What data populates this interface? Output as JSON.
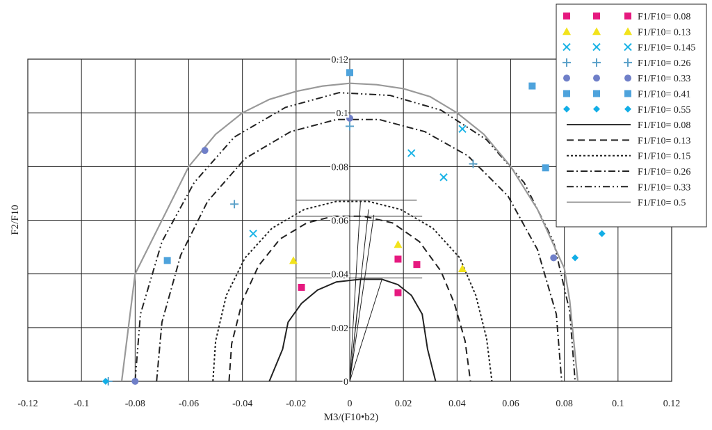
{
  "chart_data": {
    "type": "scatter",
    "xlabel": "M3/(F10•b2)",
    "ylabel": "F2/F10",
    "xlim": [
      -0.12,
      0.12
    ],
    "ylim": [
      0,
      0.12
    ],
    "x_ticks": [
      "-0.12",
      "-0.1",
      "-0.08",
      "-0.06",
      "-0.04",
      "-0.02",
      "0",
      "0.02",
      "0.04",
      "0.06",
      "0.08",
      "0.1",
      "0.12"
    ],
    "y_ticks": [
      "0",
      "0.02",
      "0.04",
      "0.06",
      "0.08",
      "0.1",
      "0.12"
    ],
    "grid": true,
    "legend_position": "top-right",
    "marker_series": [
      {
        "name": "F1/F10= 0.08",
        "marker": "square",
        "color": "#e6197f",
        "points": [
          [
            -0.018,
            0.035
          ],
          [
            0.018,
            0.0455
          ],
          [
            0.025,
            0.0435
          ],
          [
            0.018,
            0.033
          ]
        ]
      },
      {
        "name": "F1/F10= 0.13",
        "marker": "triangle",
        "color": "#f2e31c",
        "points": [
          [
            -0.021,
            0.045
          ],
          [
            0.018,
            0.051
          ],
          [
            0.042,
            0.042
          ]
        ]
      },
      {
        "name": "F1/F10= 0.145",
        "marker": "x",
        "color": "#1ab3e6",
        "points": [
          [
            -0.036,
            0.055
          ],
          [
            0.023,
            0.085
          ],
          [
            0.035,
            0.076
          ],
          [
            0.042,
            0.094
          ]
        ]
      },
      {
        "name": "F1/F10= 0.26",
        "marker": "plus",
        "color": "#5aa0c8",
        "points": [
          [
            -0.043,
            0.066
          ],
          [
            0.0,
            0.095
          ],
          [
            0.046,
            0.081
          ],
          [
            -0.09,
            0.0
          ]
        ]
      },
      {
        "name": "F1/F10= 0.33",
        "marker": "circle",
        "color": "#6f7fc8",
        "points": [
          [
            -0.054,
            0.086
          ],
          [
            0.0,
            0.098
          ],
          [
            0.076,
            0.046
          ],
          [
            -0.08,
            0.0
          ]
        ]
      },
      {
        "name": "F1/F10= 0.41",
        "marker": "square",
        "color": "#4ea3dc",
        "points": [
          [
            -0.068,
            0.045
          ],
          [
            0.0,
            0.115
          ],
          [
            0.068,
            0.11
          ],
          [
            0.073,
            0.0795
          ]
        ]
      },
      {
        "name": "F1/F10= 0.55",
        "marker": "diamond",
        "color": "#12aee6",
        "points": [
          [
            0.094,
            0.055
          ],
          [
            0.084,
            0.046
          ],
          [
            -0.091,
            0.0
          ]
        ]
      }
    ],
    "line_series": [
      {
        "name": "F1/F10= 0.08",
        "style": "solid",
        "color": "#222222",
        "points": [
          [
            -0.03,
            0.0
          ],
          [
            -0.025,
            0.012
          ],
          [
            -0.023,
            0.022
          ],
          [
            -0.018,
            0.029
          ],
          [
            -0.012,
            0.034
          ],
          [
            -0.005,
            0.037
          ],
          [
            0.004,
            0.038
          ],
          [
            0.012,
            0.038
          ],
          [
            0.018,
            0.036
          ],
          [
            0.023,
            0.032
          ],
          [
            0.027,
            0.025
          ],
          [
            0.029,
            0.012
          ],
          [
            0.032,
            0.0
          ]
        ]
      },
      {
        "name": "F1/F10= 0.13",
        "style": "dashed",
        "color": "#222222",
        "points": [
          [
            -0.045,
            0.0
          ],
          [
            -0.044,
            0.014
          ],
          [
            -0.04,
            0.03
          ],
          [
            -0.034,
            0.043
          ],
          [
            -0.026,
            0.053
          ],
          [
            -0.016,
            0.059
          ],
          [
            -0.006,
            0.0615
          ],
          [
            0.005,
            0.0615
          ],
          [
            0.016,
            0.059
          ],
          [
            0.026,
            0.052
          ],
          [
            0.034,
            0.041
          ],
          [
            0.039,
            0.029
          ],
          [
            0.043,
            0.015
          ],
          [
            0.045,
            0.0
          ]
        ]
      },
      {
        "name": "F1/F10= 0.15",
        "style": "dotted",
        "color": "#222222",
        "points": [
          [
            -0.051,
            0.0
          ],
          [
            -0.05,
            0.015
          ],
          [
            -0.046,
            0.032
          ],
          [
            -0.039,
            0.046
          ],
          [
            -0.029,
            0.057
          ],
          [
            -0.017,
            0.064
          ],
          [
            -0.005,
            0.067
          ],
          [
            0.007,
            0.067
          ],
          [
            0.019,
            0.064
          ],
          [
            0.031,
            0.057
          ],
          [
            0.041,
            0.046
          ],
          [
            0.047,
            0.032
          ],
          [
            0.051,
            0.016
          ],
          [
            0.053,
            0.0
          ]
        ]
      },
      {
        "name": "F1/F10= 0.26",
        "style": "dashdot",
        "color": "#222222",
        "points": [
          [
            -0.072,
            0.0
          ],
          [
            -0.07,
            0.022
          ],
          [
            -0.063,
            0.047
          ],
          [
            -0.053,
            0.067
          ],
          [
            -0.039,
            0.083
          ],
          [
            -0.022,
            0.093
          ],
          [
            -0.005,
            0.0975
          ],
          [
            0.011,
            0.0975
          ],
          [
            0.028,
            0.093
          ],
          [
            0.044,
            0.084
          ],
          [
            0.059,
            0.069
          ],
          [
            0.07,
            0.049
          ],
          [
            0.077,
            0.025
          ],
          [
            0.079,
            0.0
          ]
        ]
      },
      {
        "name": "F1/F10= 0.33",
        "style": "dashdotdot",
        "color": "#222222",
        "points": [
          [
            -0.08,
            0.0
          ],
          [
            -0.078,
            0.025
          ],
          [
            -0.07,
            0.052
          ],
          [
            -0.058,
            0.074
          ],
          [
            -0.043,
            0.091
          ],
          [
            -0.024,
            0.102
          ],
          [
            -0.004,
            0.1075
          ],
          [
            0.015,
            0.1065
          ],
          [
            0.034,
            0.101
          ],
          [
            0.051,
            0.09
          ],
          [
            0.065,
            0.074
          ],
          [
            0.076,
            0.052
          ],
          [
            0.082,
            0.026
          ],
          [
            0.084,
            0.0
          ]
        ]
      },
      {
        "name": "F1/F10= 0.5",
        "style": "solid",
        "color": "#999999",
        "points": [
          [
            -0.085,
            0.0
          ],
          [
            -0.08,
            0.04
          ],
          [
            -0.06,
            0.08
          ],
          [
            -0.05,
            0.092
          ],
          [
            -0.04,
            0.1
          ],
          [
            -0.03,
            0.105
          ],
          [
            -0.02,
            0.108
          ],
          [
            -0.01,
            0.11
          ],
          [
            0.0,
            0.111
          ],
          [
            0.01,
            0.1105
          ],
          [
            0.02,
            0.109
          ],
          [
            0.03,
            0.106
          ],
          [
            0.04,
            0.1
          ],
          [
            0.05,
            0.092
          ],
          [
            0.06,
            0.08
          ],
          [
            0.07,
            0.064
          ],
          [
            0.08,
            0.042
          ],
          [
            0.082,
            0.03
          ],
          [
            0.085,
            0.0
          ]
        ]
      }
    ],
    "annotation_lines": [
      {
        "from": [
          -0.02,
          0.0675
        ],
        "to": [
          0.025,
          0.0675
        ]
      },
      {
        "from": [
          -0.02,
          0.0615
        ],
        "to": [
          0.027,
          0.0615
        ]
      },
      {
        "from": [
          -0.02,
          0.0385
        ],
        "to": [
          0.027,
          0.0385
        ]
      },
      {
        "from": [
          0.0,
          0.0
        ],
        "to": [
          0.0,
          0.0675
        ]
      },
      {
        "from": [
          0.0,
          0.0
        ],
        "to": [
          0.004,
          0.067
        ]
      },
      {
        "from": [
          0.0,
          0.0
        ],
        "to": [
          0.007,
          0.064
        ]
      },
      {
        "from": [
          0.0,
          0.0
        ],
        "to": [
          0.009,
          0.062
        ]
      },
      {
        "from": [
          0.0,
          0.0
        ],
        "to": [
          0.004,
          0.038
        ]
      },
      {
        "from": [
          0.0,
          0.0
        ],
        "to": [
          0.012,
          0.038
        ]
      }
    ]
  }
}
